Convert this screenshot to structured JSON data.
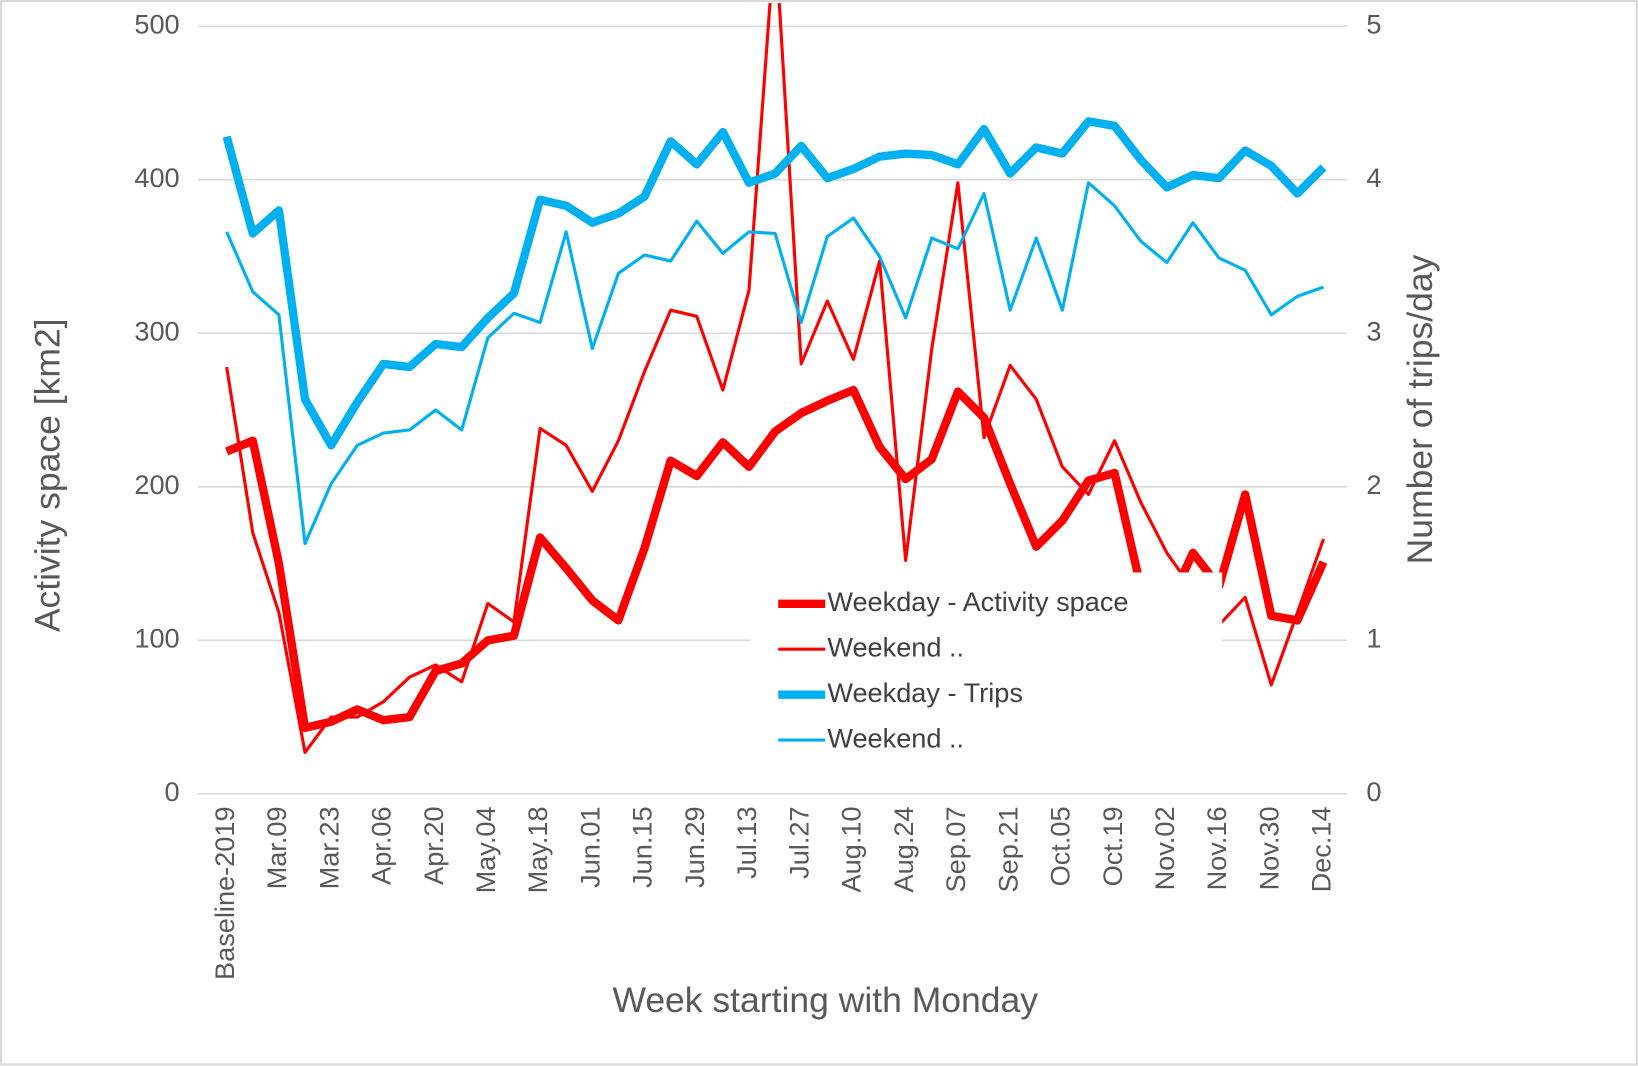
{
  "chart_data": {
    "type": "line",
    "xlabel": "Week starting with Monday",
    "ylabel": "Activity space [km2]",
    "y2label": "Number of trips/day",
    "categories": [
      "Baseline-2019",
      null,
      "Mar.09",
      null,
      "Mar.23",
      null,
      "Apr.06",
      null,
      "Apr.20",
      null,
      "May.04",
      null,
      "May.18",
      null,
      "Jun.01",
      null,
      "Jun.15",
      null,
      "Jun.29",
      null,
      "Jul.13",
      null,
      "Jul.27",
      null,
      "Aug.10",
      null,
      "Aug.24",
      null,
      "Sep.07",
      null,
      "Sep.21",
      null,
      "Oct.05",
      null,
      "Oct.19",
      null,
      "Nov.02",
      null,
      "Nov.16",
      null,
      "Nov.30",
      null,
      "Dec.14"
    ],
    "ylim": [
      0,
      500
    ],
    "yticks": [
      0,
      100,
      200,
      300,
      400,
      500
    ],
    "y2lim": [
      0,
      5
    ],
    "y2ticks": [
      0,
      1,
      2,
      3,
      4,
      5
    ],
    "grid": true,
    "legend": "center-right",
    "series": [
      {
        "name": "Weekday - Activity space",
        "color": "#ff0000",
        "width": 8,
        "values": [
          223,
          230,
          150,
          43,
          47,
          55,
          48,
          50,
          80,
          85,
          100,
          103,
          167,
          147,
          126,
          113,
          160,
          217,
          207,
          229,
          213,
          236,
          248,
          256,
          263,
          226,
          205,
          218,
          262,
          245,
          202,
          161,
          178,
          204,
          209,
          135,
          120,
          157,
          135,
          195,
          116,
          113,
          151
        ]
      },
      {
        "name": "Weekend ..",
        "color": "#ff0000",
        "width": 3,
        "values": [
          278,
          170,
          118,
          27,
          50,
          50,
          60,
          76,
          84,
          73,
          124,
          112,
          238,
          227,
          197,
          230,
          275,
          315,
          311,
          263,
          328,
          560,
          280,
          321,
          283,
          347,
          152,
          290,
          398,
          232,
          279,
          257,
          213,
          195,
          230,
          190,
          157,
          133,
          110,
          128,
          71,
          118,
          166
        ]
      },
      {
        "name": "Weekday - Trips",
        "color": "#00b0f0",
        "width": 8,
        "axis": "y2",
        "values": [
          4.28,
          3.65,
          3.8,
          2.57,
          2.27,
          2.55,
          2.8,
          2.78,
          2.93,
          2.91,
          3.1,
          3.26,
          3.87,
          3.83,
          3.72,
          3.78,
          3.89,
          4.25,
          4.1,
          4.31,
          3.98,
          4.04,
          4.22,
          4.01,
          4.07,
          4.15,
          4.17,
          4.16,
          4.1,
          4.33,
          4.04,
          4.21,
          4.17,
          4.38,
          4.35,
          4.13,
          3.95,
          4.03,
          4.01,
          4.19,
          4.09,
          3.91,
          4.08
        ]
      },
      {
        "name": "Weekend ..",
        "color": "#00b0f0",
        "width": 3,
        "axis": "y2",
        "values": [
          3.66,
          3.27,
          3.12,
          1.63,
          2.02,
          2.27,
          2.35,
          2.37,
          2.5,
          2.37,
          2.97,
          3.13,
          3.07,
          3.66,
          2.9,
          3.39,
          3.51,
          3.47,
          3.73,
          3.52,
          3.66,
          3.65,
          3.07,
          3.63,
          3.75,
          3.5,
          3.1,
          3.62,
          3.55,
          3.91,
          3.15,
          3.62,
          3.15,
          3.98,
          3.83,
          3.6,
          3.46,
          3.72,
          3.49,
          3.41,
          3.12,
          3.24,
          3.3
        ]
      }
    ]
  }
}
